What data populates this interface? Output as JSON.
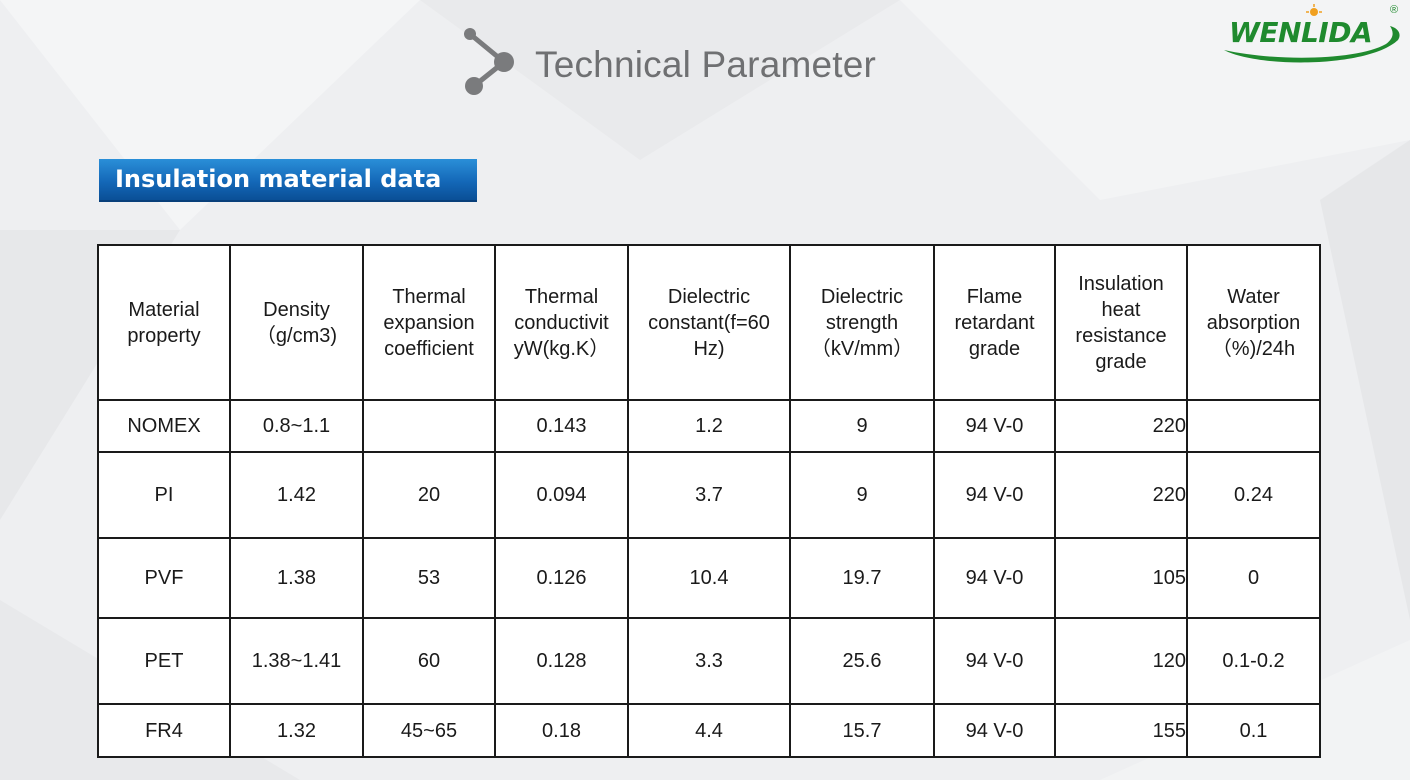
{
  "header": {
    "title": "Technical Parameter"
  },
  "logo": {
    "text": "WENLIDA",
    "registered_mark": "®"
  },
  "section": {
    "title": "Insulation material data"
  },
  "table": {
    "headers": [
      "Material\nproperty",
      "Density\n（g/cm3)",
      "Thermal\nexpansion\ncoefficient",
      "Thermal\nconductivit\nyW(kg.K）",
      "Dielectric\nconstant(f=60\nHz)",
      "Dielectric\nstrength\n（kV/mm）",
      "Flame\nretardant\ngrade",
      "Insulation\nheat\nresistance\ngrade",
      "Water\nabsorption\n（%)/24h"
    ],
    "rows": [
      [
        "NOMEX",
        "0.8~1.1",
        "",
        "0.143",
        "1.2",
        "9",
        "94 V-0",
        "220",
        ""
      ],
      [
        "PI",
        "1.42",
        "20",
        "0.094",
        "3.7",
        "9",
        "94 V-0",
        "220",
        "0.24"
      ],
      [
        "PVF",
        "1.38",
        "53",
        "0.126",
        "10.4",
        "19.7",
        "94 V-0",
        "105",
        "0"
      ],
      [
        "PET",
        "1.38~1.41",
        "60",
        "0.128",
        "3.3",
        "25.6",
        "94 V-0",
        "120",
        "0.1-0.2"
      ],
      [
        "FR4",
        "1.32",
        "45~65",
        "0.18",
        "4.4",
        "15.7",
        "94 V-0",
        "155",
        "0.1"
      ]
    ]
  },
  "colors": {
    "section_bar": "#1468b8",
    "logo_green": "#1f8a2e",
    "title_gray": "#6f7072"
  },
  "icons": {
    "header": "molecule-icon"
  }
}
